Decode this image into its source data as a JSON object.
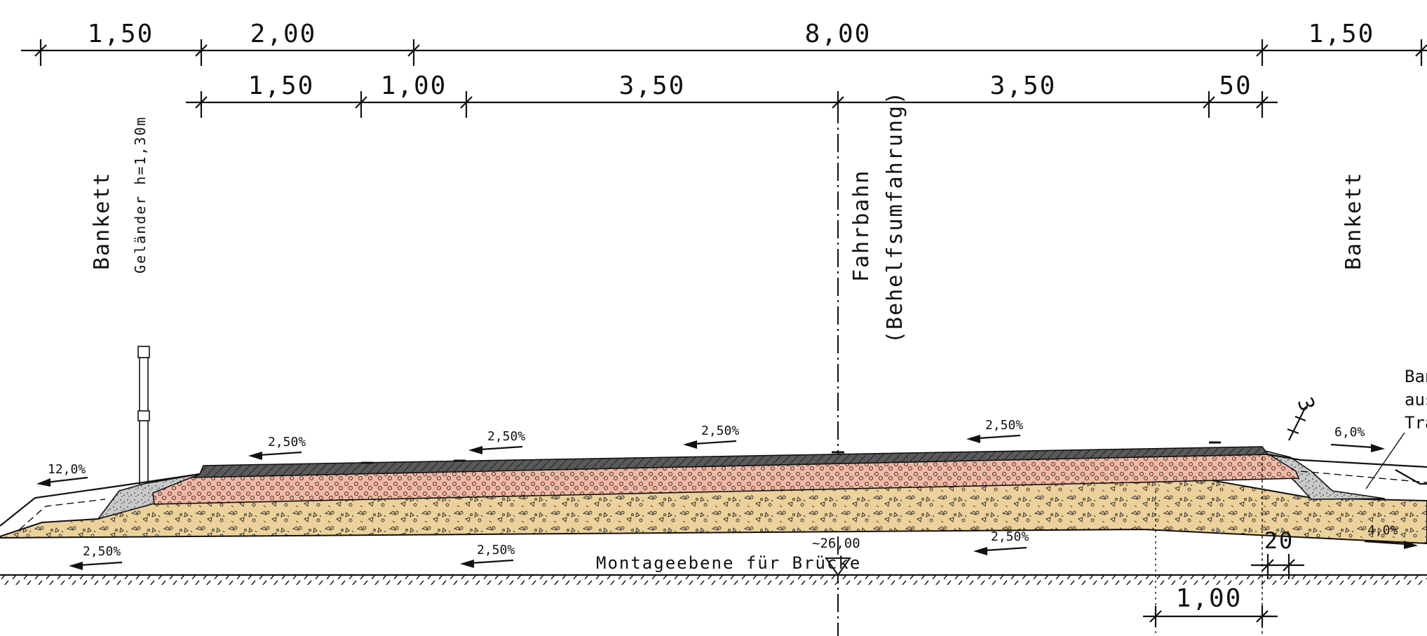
{
  "dimensions_top": [
    "1,50",
    "2,00",
    "8,00",
    "1,50"
  ],
  "dimensions_second": [
    "1,50",
    "1,00",
    "3,50",
    "3,50",
    "50"
  ],
  "dimensions_bottom": [
    "20",
    "1,00",
    "3"
  ],
  "labels": {
    "bankett_left": "Bankett",
    "gelaender": "Geländer h=1,30m",
    "fahrbahn": "Fahrbahn",
    "behelfsumfahrung": "(Behelfsumfahrung)",
    "bankett_right": "Bankett",
    "note_right": [
      "Ban",
      "aus",
      "Tra"
    ],
    "montageebene": "Montageebene für Brücke",
    "elevation": "~26,00"
  },
  "slopes": [
    "12,0%",
    "2,50%",
    "2,50%",
    "2,50%",
    "2,50%",
    "6,0%",
    "2,50%",
    "2,50%",
    "2,50%",
    "4,0%"
  ],
  "colors": {
    "asphalt": "#5a5a5a",
    "base_course": "#f4b9a4",
    "subbase": "#ecd29a",
    "shoulder_gravel": "#c8c8c8",
    "line": "#111111"
  }
}
